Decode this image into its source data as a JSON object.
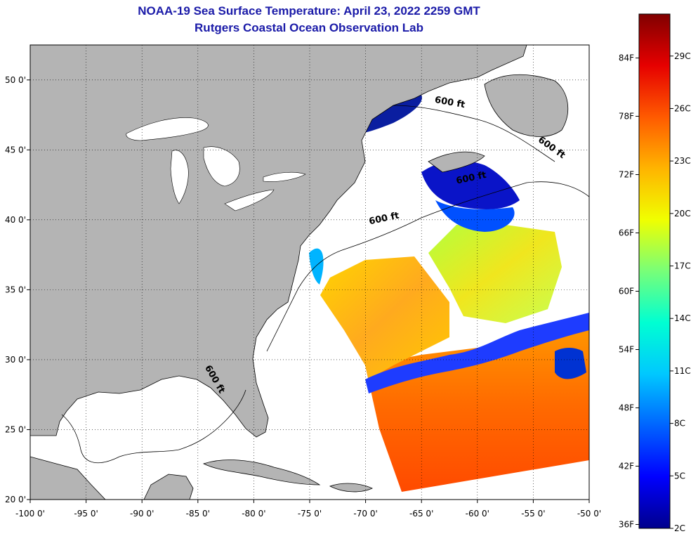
{
  "title": {
    "line1": "NOAA-19 Sea Surface Temperature:  April 23, 2022 2259 GMT",
    "line2": "Rutgers Coastal Ocean Observation Lab"
  },
  "map": {
    "lon_range": [
      -100,
      -50
    ],
    "lat_range": [
      20,
      52.5
    ],
    "lon_ticks": [
      -100,
      -95,
      -90,
      -85,
      -80,
      -75,
      -70,
      -65,
      -60,
      -55,
      -50
    ],
    "lon_tick_labels": [
      "-100 0'",
      "-95 0'",
      "-90 0'",
      "-85 0'",
      "-80 0'",
      "-75 0'",
      "-70 0'",
      "-65 0'",
      "-60 0'",
      "-55 0'",
      "-50 0'"
    ],
    "lat_ticks": [
      20,
      25,
      30,
      35,
      40,
      45,
      50
    ],
    "lat_tick_labels": [
      "20 0'",
      "25 0'",
      "30 0'",
      "35 0'",
      "40 0'",
      "45 0'",
      "50 0'"
    ],
    "grid": "dotted",
    "land_color": "#b4b4b4",
    "no_data_color": "#ffffff",
    "contour_labels": [
      {
        "text": "600 ft",
        "lon": -62.5,
        "lat": 48.2,
        "angle": 10
      },
      {
        "text": "600 ft",
        "lon": -53.5,
        "lat": 45.0,
        "angle": 35
      },
      {
        "text": "600 ft",
        "lon": -60.5,
        "lat": 42.8,
        "angle": -12
      },
      {
        "text": "600 ft",
        "lon": -68.3,
        "lat": 39.9,
        "angle": -12
      },
      {
        "text": "600 ft",
        "lon": -83.7,
        "lat": 28.5,
        "angle": 60
      }
    ]
  },
  "colorbar": {
    "f_labels": [
      "36F",
      "42F",
      "48F",
      "54F",
      "60F",
      "66F",
      "72F",
      "78F",
      "84F"
    ],
    "c_labels": [
      "2C",
      "5C",
      "8C",
      "11C",
      "14C",
      "17C",
      "20C",
      "23C",
      "26C",
      "29C"
    ],
    "f_values": [
      36,
      42,
      48,
      54,
      60,
      66,
      72,
      78,
      84
    ],
    "c_values": [
      2,
      5,
      8,
      11,
      14,
      17,
      20,
      23,
      26,
      29
    ],
    "range_c": [
      2,
      31.4
    ],
    "colors": [
      "#00008c",
      "#0000ff",
      "#0064ff",
      "#00c8ff",
      "#00ffd2",
      "#78ff78",
      "#f0ff00",
      "#ffb400",
      "#ff5a00",
      "#e60000",
      "#800000"
    ]
  }
}
